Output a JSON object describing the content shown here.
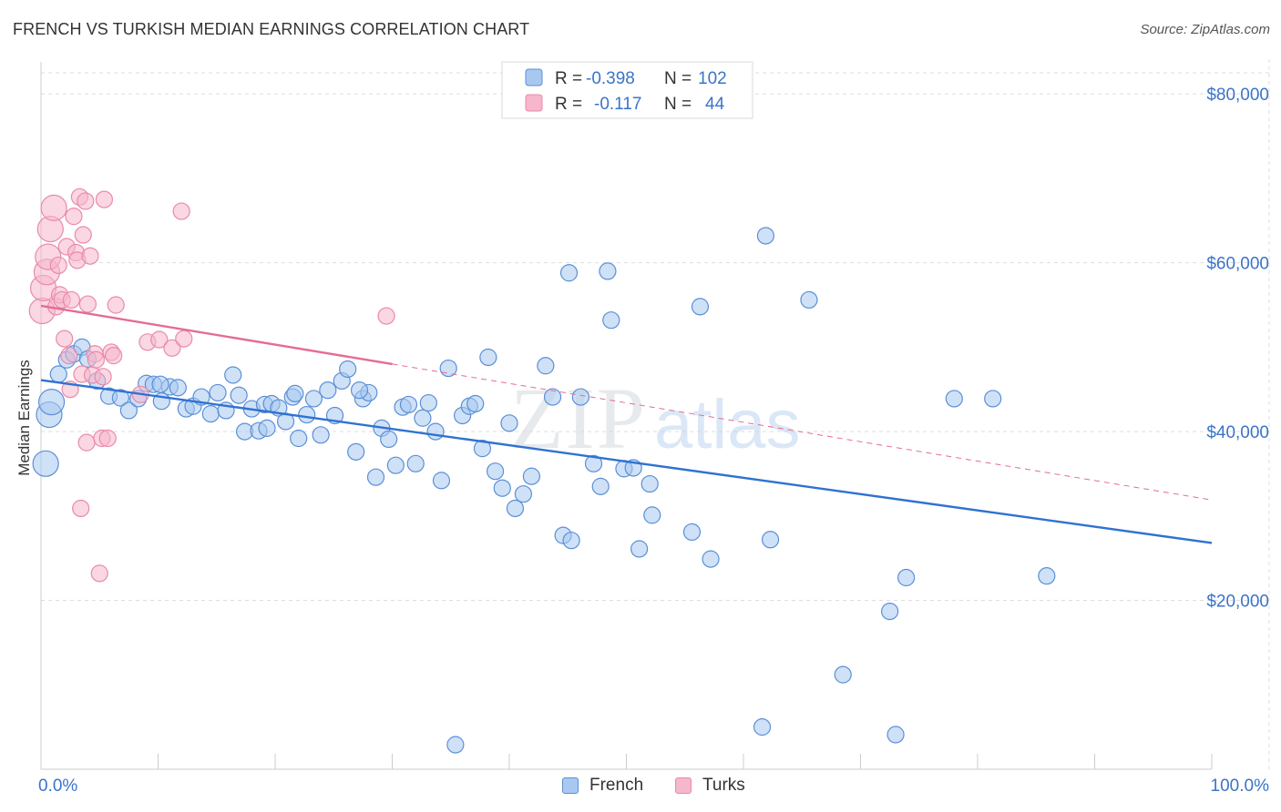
{
  "title": "FRENCH VS TURKISH MEDIAN EARNINGS CORRELATION CHART",
  "source": "Source: ZipAtlas.com",
  "watermark": {
    "zip": "ZIP",
    "atlas": "atlas"
  },
  "colors": {
    "french_fill": "#a8c8f0",
    "french_stroke": "#5b8fd6",
    "french_line": "#2f72d2",
    "turks_fill": "#f6b6cb",
    "turks_stroke": "#e98aaa",
    "turks_line": "#e56b96",
    "axis_value": "#3a74c9",
    "grid": "#dddddd"
  },
  "legend": {
    "rows": [
      {
        "r_label": "R =",
        "r_value": "-0.398",
        "n_label": "N =",
        "n_value": "102"
      },
      {
        "r_label": "R =",
        "r_value": "-0.117",
        "n_label": "N =",
        "n_value": "44"
      }
    ]
  },
  "bottom_legend": {
    "french": "French",
    "turks": "Turks"
  },
  "chart_data": {
    "type": "scatter",
    "title": "FRENCH VS TURKISH MEDIAN EARNINGS CORRELATION CHART",
    "xlabel": "",
    "ylabel": "Median Earnings",
    "xlim": [
      0,
      100
    ],
    "ylim": [
      0,
      82500
    ],
    "x_tick_labels": [
      "0.0%",
      "100.0%"
    ],
    "y_ticks": [
      20000,
      40000,
      60000,
      80000
    ],
    "y_tick_labels": [
      "$20,000",
      "$40,000",
      "$60,000",
      "$80,000"
    ],
    "grid": true,
    "legend_position": "top-center",
    "series": [
      {
        "name": "French",
        "r": -0.398,
        "n": 102,
        "trend": {
          "x": [
            0,
            100
          ],
          "y": [
            46100,
            26800
          ]
        },
        "points": [
          [
            0.4,
            36200
          ],
          [
            0.7,
            42000
          ],
          [
            0.9,
            43500
          ],
          [
            1.5,
            46800
          ],
          [
            2.2,
            48500
          ],
          [
            2.8,
            49200
          ],
          [
            3.5,
            50000
          ],
          [
            4.0,
            48600
          ],
          [
            4.8,
            46000
          ],
          [
            5.8,
            44200
          ],
          [
            6.8,
            44000
          ],
          [
            7.5,
            42500
          ],
          [
            8.3,
            43900
          ],
          [
            9.0,
            45700
          ],
          [
            9.6,
            45600
          ],
          [
            10.3,
            43600
          ],
          [
            11.0,
            45300
          ],
          [
            11.7,
            45200
          ],
          [
            12.4,
            42700
          ],
          [
            13.0,
            43000
          ],
          [
            13.7,
            44100
          ],
          [
            14.5,
            42100
          ],
          [
            15.1,
            44600
          ],
          [
            15.8,
            42500
          ],
          [
            16.4,
            46700
          ],
          [
            16.9,
            44300
          ],
          [
            17.4,
            40000
          ],
          [
            18.0,
            42700
          ],
          [
            18.6,
            40100
          ],
          [
            19.1,
            43200
          ],
          [
            19.7,
            43300
          ],
          [
            20.3,
            42800
          ],
          [
            20.9,
            41200
          ],
          [
            21.5,
            44100
          ],
          [
            22.0,
            39200
          ],
          [
            22.7,
            42000
          ],
          [
            23.3,
            43900
          ],
          [
            23.9,
            39600
          ],
          [
            24.5,
            44900
          ],
          [
            25.1,
            41900
          ],
          [
            25.7,
            46000
          ],
          [
            26.2,
            47400
          ],
          [
            26.9,
            37600
          ],
          [
            27.5,
            43900
          ],
          [
            28.0,
            44600
          ],
          [
            28.6,
            34600
          ],
          [
            29.1,
            40400
          ],
          [
            29.7,
            39100
          ],
          [
            30.3,
            36000
          ],
          [
            30.9,
            42900
          ],
          [
            31.4,
            43200
          ],
          [
            32.0,
            36200
          ],
          [
            32.6,
            41600
          ],
          [
            33.1,
            43400
          ],
          [
            33.7,
            40000
          ],
          [
            34.2,
            34200
          ],
          [
            34.8,
            47500
          ],
          [
            35.4,
            2900
          ],
          [
            36.0,
            41900
          ],
          [
            36.6,
            43000
          ],
          [
            37.1,
            43300
          ],
          [
            37.7,
            38000
          ],
          [
            38.2,
            48800
          ],
          [
            38.8,
            35300
          ],
          [
            39.4,
            33300
          ],
          [
            40.0,
            41000
          ],
          [
            40.5,
            30900
          ],
          [
            41.2,
            32600
          ],
          [
            41.9,
            34700
          ],
          [
            43.1,
            47800
          ],
          [
            43.7,
            44100
          ],
          [
            44.6,
            27700
          ],
          [
            45.3,
            27100
          ],
          [
            45.1,
            58800
          ],
          [
            46.1,
            44100
          ],
          [
            47.2,
            36200
          ],
          [
            47.8,
            33500
          ],
          [
            48.4,
            59000
          ],
          [
            48.7,
            53200
          ],
          [
            49.8,
            35600
          ],
          [
            50.6,
            35700
          ],
          [
            51.1,
            26100
          ],
          [
            52.0,
            33800
          ],
          [
            52.2,
            30100
          ],
          [
            55.6,
            28100
          ],
          [
            56.3,
            54800
          ],
          [
            57.2,
            24900
          ],
          [
            61.9,
            63200
          ],
          [
            62.3,
            27200
          ],
          [
            61.6,
            5000
          ],
          [
            65.6,
            55600
          ],
          [
            68.5,
            11200
          ],
          [
            72.5,
            18700
          ],
          [
            73.9,
            22700
          ],
          [
            73.0,
            4100
          ],
          [
            78.0,
            43900
          ],
          [
            81.3,
            43900
          ],
          [
            85.9,
            22900
          ],
          [
            10.2,
            45600
          ],
          [
            21.7,
            44500
          ],
          [
            19.3,
            40400
          ],
          [
            27.2,
            44900
          ]
        ]
      },
      {
        "name": "Turks",
        "r": -0.117,
        "n": 44,
        "trend": {
          "x": [
            0,
            30
          ],
          "y": [
            54900,
            48000
          ]
        },
        "trend_extended": {
          "x": [
            30,
            100
          ],
          "y": [
            48000,
            31900
          ]
        },
        "points": [
          [
            0.1,
            54300
          ],
          [
            0.2,
            57000
          ],
          [
            0.5,
            58900
          ],
          [
            0.6,
            60700
          ],
          [
            0.8,
            64000
          ],
          [
            1.1,
            66500
          ],
          [
            1.3,
            54800
          ],
          [
            1.5,
            59700
          ],
          [
            1.6,
            56200
          ],
          [
            1.8,
            55600
          ],
          [
            2.0,
            51000
          ],
          [
            2.2,
            61900
          ],
          [
            2.4,
            49000
          ],
          [
            2.6,
            55600
          ],
          [
            2.8,
            65500
          ],
          [
            3.0,
            61200
          ],
          [
            3.1,
            60300
          ],
          [
            3.3,
            67800
          ],
          [
            3.5,
            46800
          ],
          [
            3.6,
            63300
          ],
          [
            3.8,
            67300
          ],
          [
            3.9,
            38700
          ],
          [
            4.0,
            55100
          ],
          [
            4.2,
            60800
          ],
          [
            4.4,
            46700
          ],
          [
            4.6,
            49200
          ],
          [
            5.0,
            23200
          ],
          [
            5.2,
            39200
          ],
          [
            5.4,
            67500
          ],
          [
            5.7,
            39200
          ],
          [
            6.0,
            49400
          ],
          [
            6.4,
            55000
          ],
          [
            8.5,
            44400
          ],
          [
            9.1,
            50600
          ],
          [
            10.1,
            50900
          ],
          [
            11.2,
            49900
          ],
          [
            12.2,
            51000
          ],
          [
            12.0,
            66100
          ],
          [
            29.5,
            53700
          ],
          [
            2.5,
            45000
          ],
          [
            4.7,
            48500
          ],
          [
            5.3,
            46500
          ],
          [
            3.4,
            30900
          ],
          [
            6.2,
            49000
          ]
        ]
      }
    ]
  }
}
